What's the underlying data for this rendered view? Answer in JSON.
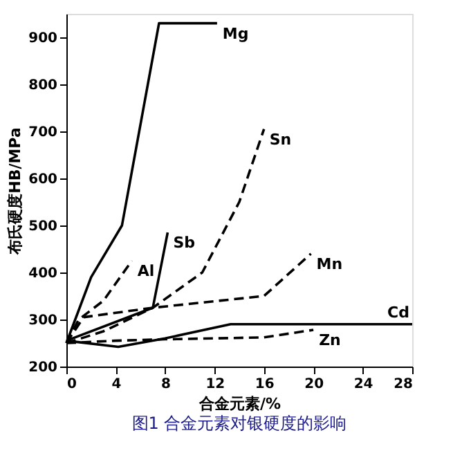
{
  "chart_data": {
    "type": "line",
    "title": "图1 合金元素对银硬度的影响",
    "xlabel": "合金元素/%",
    "ylabel": "布氏硬度HB/MPa",
    "xlim": [
      0,
      28
    ],
    "xticks": [
      0,
      4,
      8,
      12,
      16,
      20,
      24,
      28
    ],
    "ylim": [
      200,
      950
    ],
    "yticks": [
      200,
      300,
      400,
      500,
      600,
      700,
      800,
      900
    ],
    "grid": false,
    "marker": "none",
    "series": [
      {
        "name": "Mg",
        "color": "#000000",
        "line_style": "solid",
        "x": [
          0,
          2,
          4.5,
          7.5,
          12.2
        ],
        "values": [
          250,
          390,
          500,
          930,
          930
        ]
      },
      {
        "name": "Sn",
        "color": "#000000",
        "line_style": "dashed",
        "x": [
          0,
          3,
          7,
          11,
          14,
          16
        ],
        "values": [
          250,
          275,
          325,
          400,
          550,
          705
        ]
      },
      {
        "name": "Sb",
        "color": "#000000",
        "line_style": "solid",
        "x": [
          0,
          7,
          8.2
        ],
        "values": [
          255,
          325,
          485
        ]
      },
      {
        "name": "Al",
        "color": "#000000",
        "line_style": "dashed",
        "x": [
          0,
          1,
          3,
          5.3
        ],
        "values": [
          250,
          300,
          340,
          425
        ]
      },
      {
        "name": "Mn",
        "color": "#000000",
        "line_style": "dashed",
        "x": [
          0,
          1.4,
          7,
          16,
          19.8
        ],
        "values": [
          250,
          305,
          325,
          350,
          440
        ]
      },
      {
        "name": "Cd",
        "color": "#000000",
        "line_style": "solid",
        "x": [
          0,
          4.2,
          8,
          13.3,
          28
        ],
        "values": [
          255,
          242,
          260,
          290,
          290
        ]
      },
      {
        "name": "Zn",
        "color": "#000000",
        "line_style": "dashed",
        "x": [
          0,
          4,
          8,
          16,
          20
        ],
        "values": [
          250,
          255,
          258,
          262,
          278
        ]
      }
    ]
  }
}
